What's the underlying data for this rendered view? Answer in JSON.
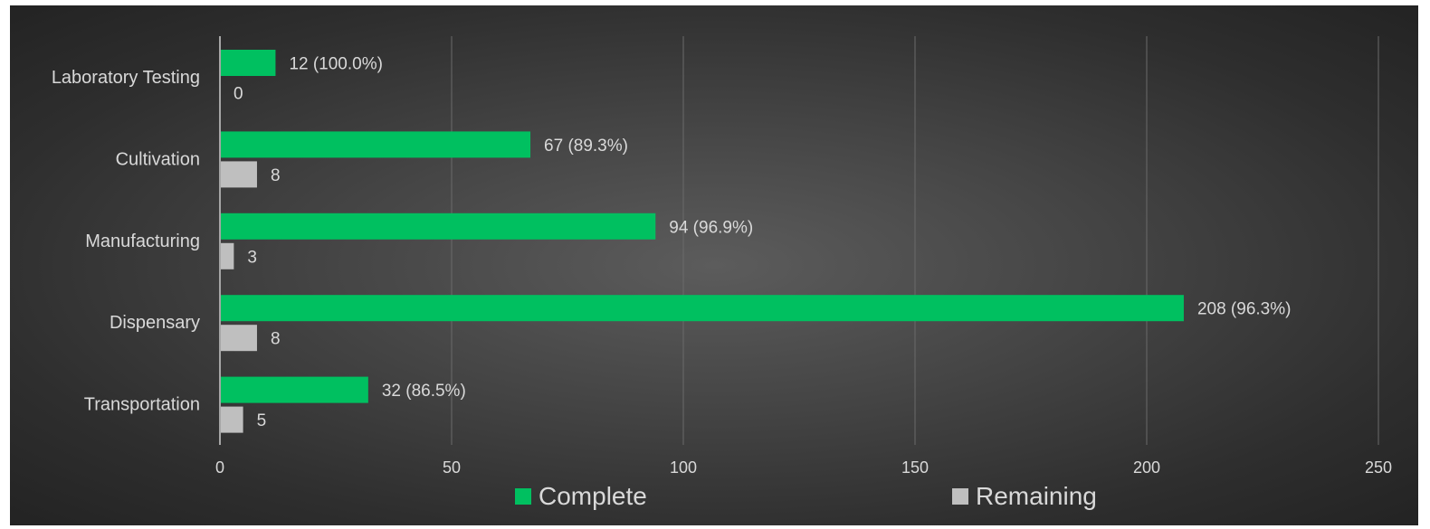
{
  "chart_data": {
    "type": "bar",
    "orientation": "horizontal",
    "categories": [
      "Laboratory Testing",
      "Cultivation",
      "Manufacturing",
      "Dispensary",
      "Transportation"
    ],
    "series": [
      {
        "name": "Complete",
        "color": "#00c060",
        "values": [
          12,
          67,
          94,
          208,
          32
        ],
        "labels": [
          "12 (100.0%)",
          "67 (89.3%)",
          "94 (96.9%)",
          "208 (96.3%)",
          "32 (86.5%)"
        ]
      },
      {
        "name": "Remaining",
        "color": "#bfbfbf",
        "values": [
          0,
          8,
          3,
          8,
          5
        ],
        "labels": [
          "0",
          "8",
          "3",
          "8",
          "5"
        ]
      }
    ],
    "xlim": [
      0,
      250
    ],
    "xticks": [
      0,
      50,
      100,
      150,
      200,
      250
    ],
    "xtick_labels": [
      "0",
      "50",
      "100",
      "150",
      "200",
      "250"
    ],
    "title": "",
    "xlabel": "",
    "ylabel": "",
    "grid": "vertical",
    "legend_position": "bottom"
  },
  "colors": {
    "background": "#3a3a3a",
    "gridline": "#6a6a6a",
    "axis": "#a6a6a6",
    "text": "#d9d9d9"
  }
}
